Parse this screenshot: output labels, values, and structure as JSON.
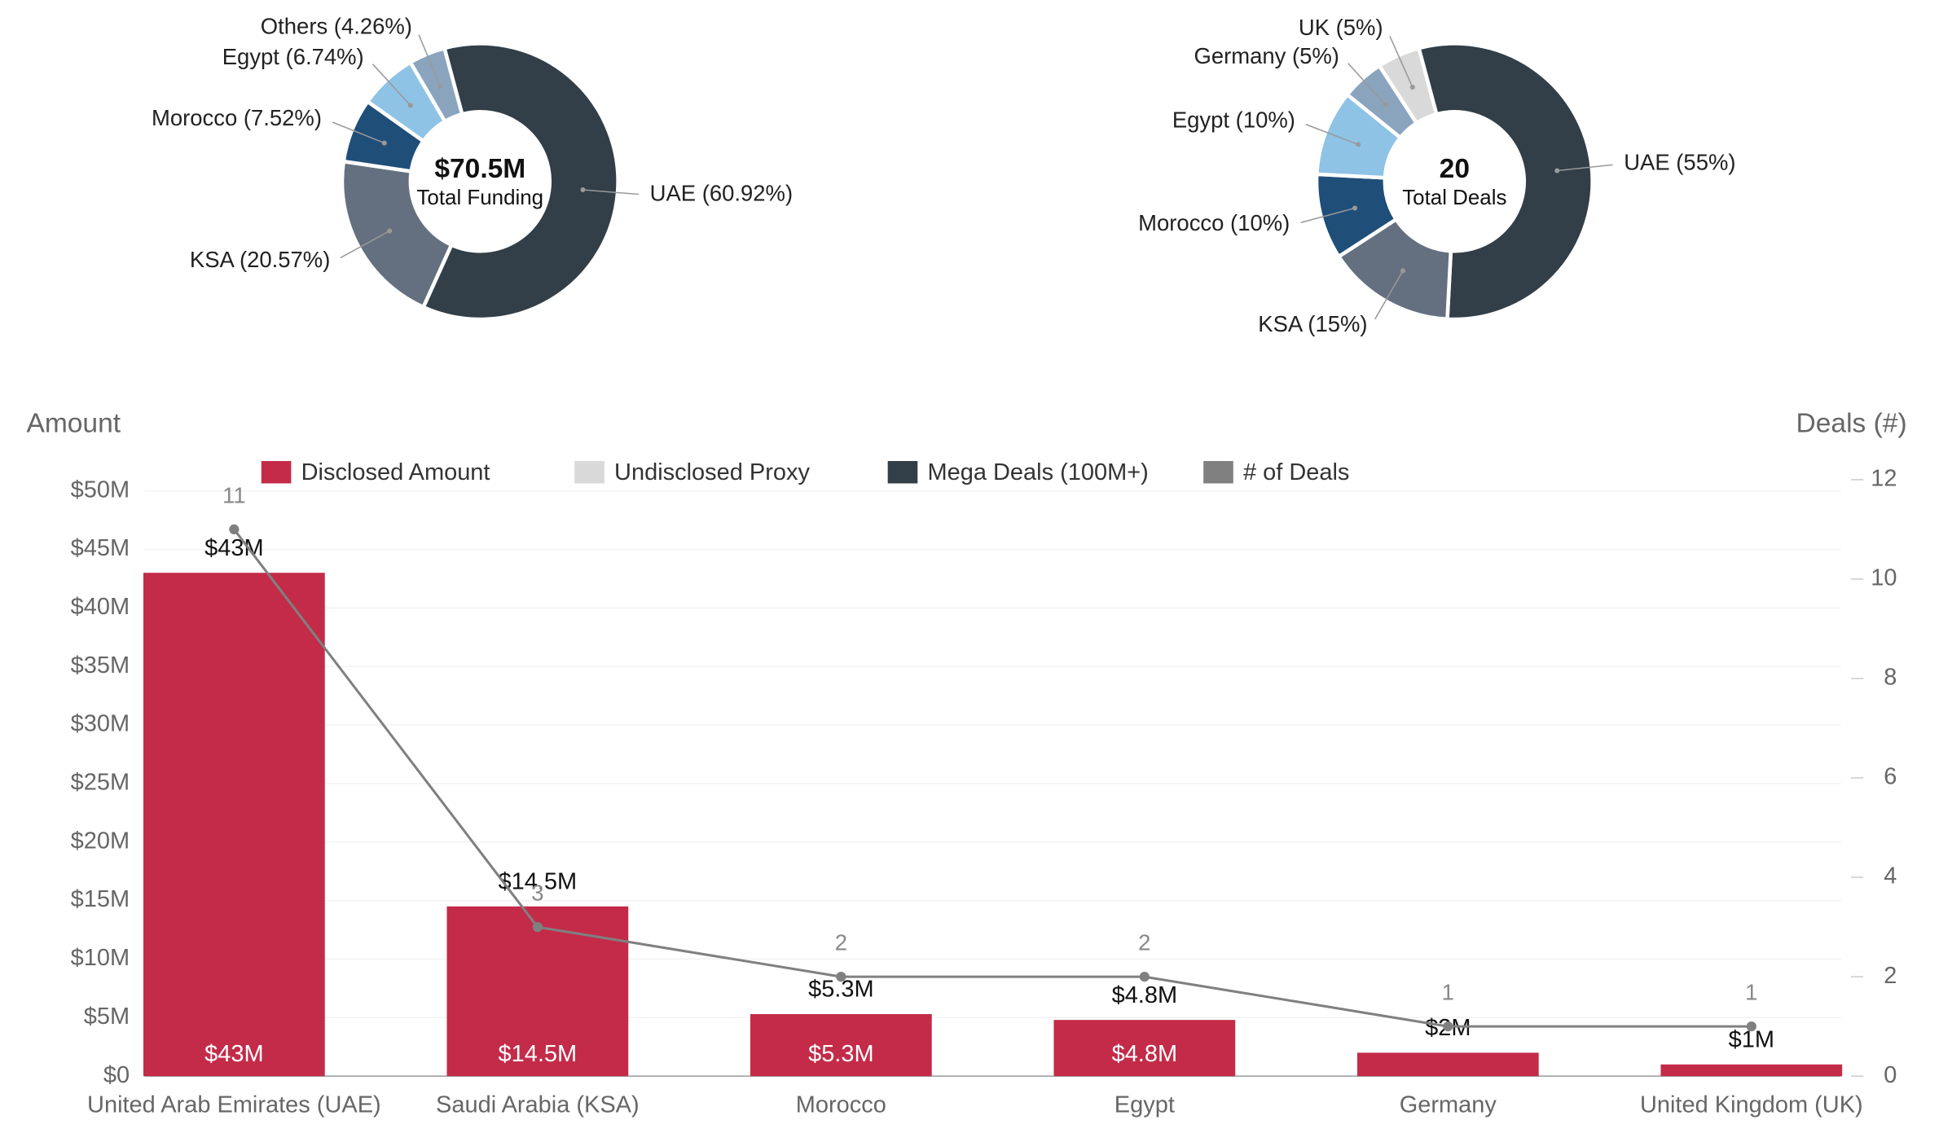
{
  "chart_data": [
    {
      "type": "donut",
      "center_value": "$70.5M",
      "center_label": "Total Funding",
      "categories": [
        "UAE",
        "KSA",
        "Morocco",
        "Egypt",
        "Others"
      ],
      "values": [
        60.92,
        20.57,
        7.52,
        6.74,
        4.26
      ],
      "value_labels": [
        "UAE (60.92%)",
        "KSA (20.57%)",
        "Morocco (7.52%)",
        "Egypt (6.74%)",
        "Others (4.26%)"
      ],
      "colors": [
        "#323e48",
        "#64707f",
        "#1f4e79",
        "#8ec3e6",
        "#8aa4be"
      ]
    },
    {
      "type": "donut",
      "center_value": "20",
      "center_label": "Total Deals",
      "categories": [
        "UAE",
        "KSA",
        "Morocco",
        "Egypt",
        "Germany",
        "UK"
      ],
      "values": [
        55,
        15,
        10,
        10,
        5,
        5
      ],
      "value_labels": [
        "UAE (55%)",
        "KSA (15%)",
        "Morocco (10%)",
        "Egypt (10%)",
        "Germany (5%)",
        "UK (5%)"
      ],
      "colors": [
        "#323e48",
        "#64707f",
        "#1f4e79",
        "#8ec3e6",
        "#8aa4be",
        "#d9d9d9"
      ]
    },
    {
      "type": "combo",
      "y_label": "Amount",
      "y2_label": "Deals (#)",
      "categories": [
        "United Arab Emirates (UAE)",
        "Saudi Arabia (KSA)",
        "Morocco",
        "Egypt",
        "Germany",
        "United Kingdom (UK)"
      ],
      "series": [
        {
          "name": "Disclosed Amount",
          "type": "bar",
          "color": "#c32b49",
          "values": [
            43,
            14.5,
            5.3,
            4.8,
            2,
            1
          ],
          "value_labels": [
            "$43M",
            "$14.5M",
            "$5.3M",
            "$4.8M",
            null,
            null
          ]
        },
        {
          "name": "Undisclosed Proxy",
          "type": "bar",
          "color": "#d9d9d9",
          "values": [
            0,
            0,
            0,
            0,
            0,
            0
          ]
        },
        {
          "name": "Mega Deals (100M+)",
          "type": "bar",
          "color": "#323e48",
          "values": [
            0,
            0,
            0,
            0,
            0,
            0
          ]
        },
        {
          "name": "# of Deals",
          "type": "line",
          "axis": "y2",
          "color": "#808080",
          "values": [
            11,
            3,
            2,
            2,
            1,
            1
          ]
        }
      ],
      "total_labels": [
        "$43M",
        "$14.5M",
        "$5.3M",
        "$4.8M",
        "$2M",
        "$1M"
      ],
      "ylim": [
        0,
        50
      ],
      "yticks": [
        {
          "value": 0,
          "label": "$0"
        },
        {
          "value": 5,
          "label": "$5M"
        },
        {
          "value": 10,
          "label": "$10M"
        },
        {
          "value": 15,
          "label": "$15M"
        },
        {
          "value": 20,
          "label": "$20M"
        },
        {
          "value": 25,
          "label": "$25M"
        },
        {
          "value": 30,
          "label": "$30M"
        },
        {
          "value": 35,
          "label": "$35M"
        },
        {
          "value": 40,
          "label": "$40M"
        },
        {
          "value": 45,
          "label": "$45M"
        },
        {
          "value": 50,
          "label": "$50M"
        }
      ],
      "y2lim": [
        0,
        12
      ],
      "y2ticks": [
        0,
        2,
        4,
        6,
        8,
        10,
        12
      ],
      "grid": true
    }
  ]
}
